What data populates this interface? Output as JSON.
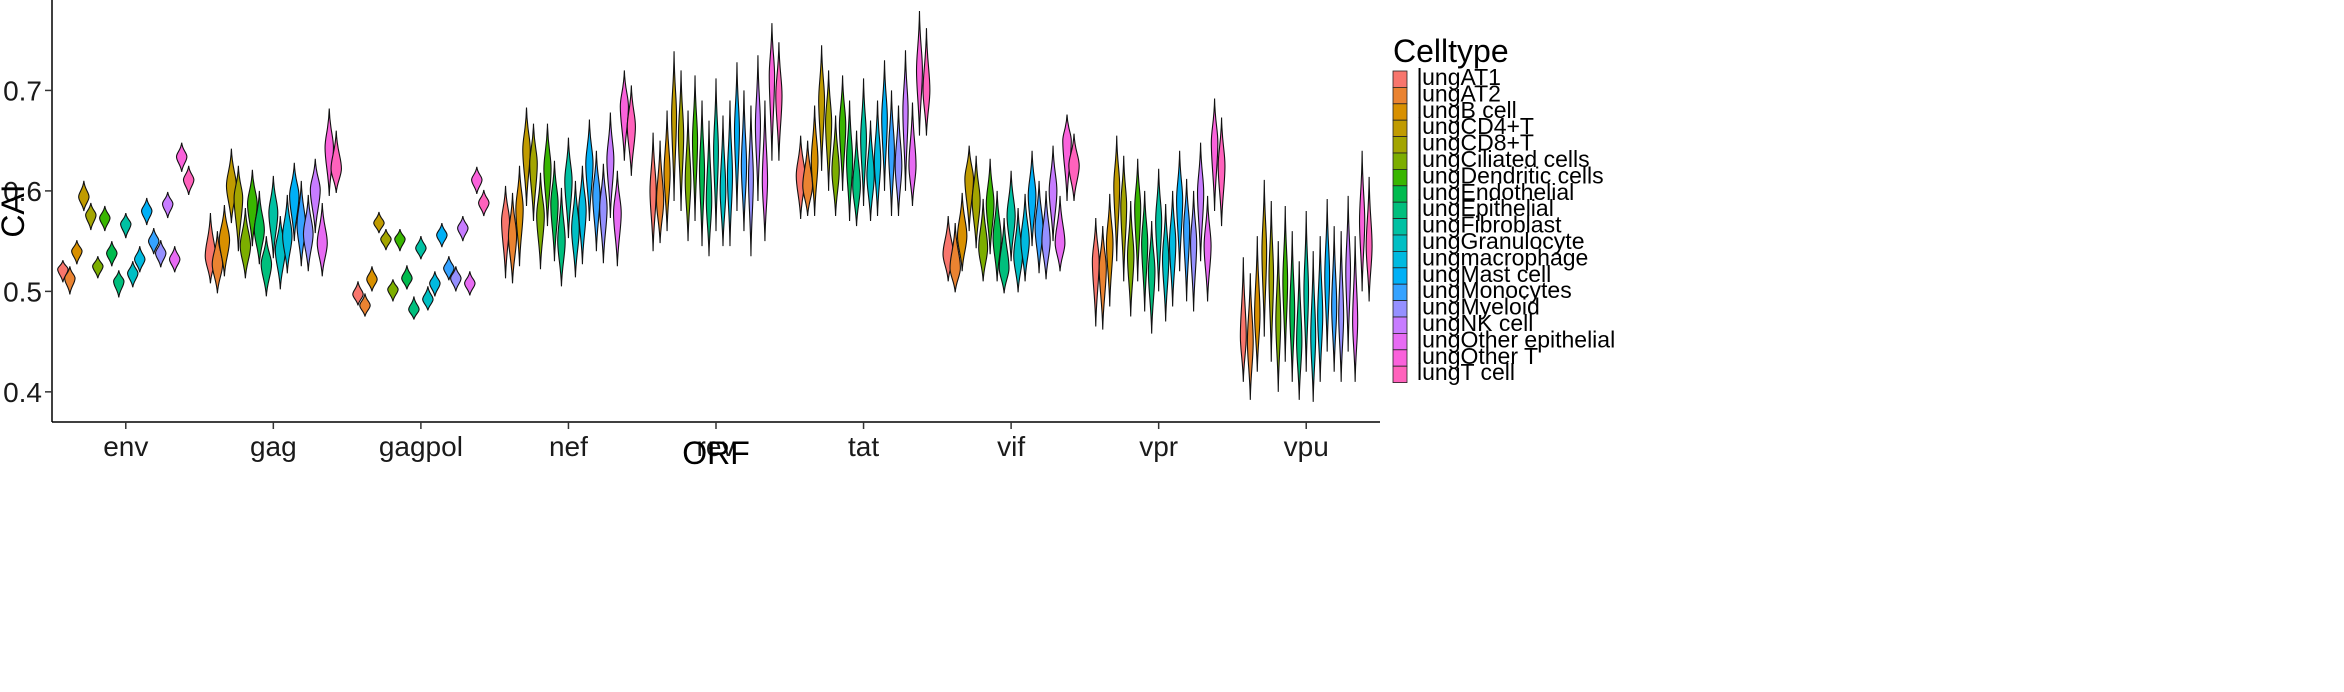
{
  "chart_data": {
    "type": "violin",
    "title": "",
    "xlabel": "ORF",
    "ylabel": "CAI",
    "ylim": [
      0.37,
      0.79
    ],
    "yticks": [
      0.4,
      0.5,
      0.6,
      0.7
    ],
    "categories": [
      "env",
      "gag",
      "gagpol",
      "nef",
      "rev",
      "tat",
      "vif",
      "vpr",
      "vpu"
    ],
    "legend_title": "Celltype",
    "legend_position": "right",
    "grid": false,
    "series": [
      {
        "name": "lungAT1",
        "color": "#F8766D"
      },
      {
        "name": "lungAT2",
        "color": "#EA8331"
      },
      {
        "name": "lungB cell",
        "color": "#D89000"
      },
      {
        "name": "lungCD4+T",
        "color": "#C09B00"
      },
      {
        "name": "lungCD8+T",
        "color": "#A3A500"
      },
      {
        "name": "lungCiliated cells",
        "color": "#7CAE00"
      },
      {
        "name": "lungDendritic cells",
        "color": "#39B600"
      },
      {
        "name": "lungEndothelial",
        "color": "#00BB4E"
      },
      {
        "name": "lungEpithelial",
        "color": "#00BF7D"
      },
      {
        "name": "lungFibroblast",
        "color": "#00C1A3"
      },
      {
        "name": "lungGranulocyte",
        "color": "#00BFC4"
      },
      {
        "name": "lungmacrophage",
        "color": "#00BAE0"
      },
      {
        "name": "lungMast cell",
        "color": "#00B0F6"
      },
      {
        "name": "lungMonocytes",
        "color": "#35A2FF"
      },
      {
        "name": "lungMyeloid",
        "color": "#9590FF"
      },
      {
        "name": "lungNK cell",
        "color": "#C77CFF"
      },
      {
        "name": "lungOther epithelial",
        "color": "#E76BF3"
      },
      {
        "name": "lungOther T",
        "color": "#FA62DB"
      },
      {
        "name": "lungT cell",
        "color": "#FF62BC"
      }
    ],
    "violins": {
      "env": [
        [
          0.522,
          0.509,
          0.531
        ],
        [
          0.513,
          0.497,
          0.525
        ],
        [
          0.54,
          0.527,
          0.551
        ],
        [
          0.594,
          0.58,
          0.61
        ],
        [
          0.576,
          0.561,
          0.588
        ],
        [
          0.525,
          0.513,
          0.535
        ],
        [
          0.573,
          0.56,
          0.585
        ],
        [
          0.538,
          0.525,
          0.55
        ],
        [
          0.51,
          0.494,
          0.521
        ],
        [
          0.567,
          0.553,
          0.578
        ],
        [
          0.518,
          0.504,
          0.53
        ],
        [
          0.532,
          0.519,
          0.545
        ],
        [
          0.58,
          0.566,
          0.593
        ],
        [
          0.55,
          0.537,
          0.563
        ],
        [
          0.538,
          0.524,
          0.551
        ],
        [
          0.587,
          0.573,
          0.599
        ],
        [
          0.532,
          0.519,
          0.545
        ],
        [
          0.634,
          0.619,
          0.648
        ],
        [
          0.611,
          0.596,
          0.625
        ]
      ],
      "gag": [
        [
          0.535,
          0.508,
          0.578
        ],
        [
          0.527,
          0.498,
          0.56
        ],
        [
          0.551,
          0.515,
          0.586
        ],
        [
          0.605,
          0.568,
          0.642
        ],
        [
          0.593,
          0.54,
          0.625
        ],
        [
          0.545,
          0.513,
          0.583
        ],
        [
          0.587,
          0.545,
          0.621
        ],
        [
          0.561,
          0.527,
          0.6
        ],
        [
          0.527,
          0.495,
          0.555
        ],
        [
          0.578,
          0.533,
          0.615
        ],
        [
          0.541,
          0.502,
          0.575
        ],
        [
          0.555,
          0.518,
          0.596
        ],
        [
          0.595,
          0.55,
          0.628
        ],
        [
          0.566,
          0.525,
          0.61
        ],
        [
          0.557,
          0.52,
          0.596
        ],
        [
          0.601,
          0.558,
          0.632
        ],
        [
          0.548,
          0.515,
          0.588
        ],
        [
          0.643,
          0.595,
          0.682
        ],
        [
          0.622,
          0.598,
          0.66
        ]
      ],
      "gagpol": [
        [
          0.497,
          0.486,
          0.51
        ],
        [
          0.486,
          0.475,
          0.498
        ],
        [
          0.512,
          0.5,
          0.525
        ],
        [
          0.568,
          0.558,
          0.579
        ],
        [
          0.552,
          0.541,
          0.562
        ],
        [
          0.502,
          0.49,
          0.512
        ],
        [
          0.552,
          0.54,
          0.562
        ],
        [
          0.513,
          0.502,
          0.526
        ],
        [
          0.482,
          0.472,
          0.495
        ],
        [
          0.543,
          0.532,
          0.555
        ],
        [
          0.492,
          0.481,
          0.505
        ],
        [
          0.508,
          0.495,
          0.52
        ],
        [
          0.556,
          0.544,
          0.568
        ],
        [
          0.523,
          0.511,
          0.535
        ],
        [
          0.513,
          0.5,
          0.525
        ],
        [
          0.563,
          0.55,
          0.575
        ],
        [
          0.508,
          0.496,
          0.52
        ],
        [
          0.611,
          0.597,
          0.624
        ],
        [
          0.588,
          0.575,
          0.601
        ]
      ],
      "nef": [
        [
          0.57,
          0.513,
          0.605
        ],
        [
          0.555,
          0.508,
          0.598
        ],
        [
          0.582,
          0.525,
          0.625
        ],
        [
          0.641,
          0.585,
          0.683
        ],
        [
          0.627,
          0.57,
          0.667
        ],
        [
          0.575,
          0.522,
          0.618
        ],
        [
          0.622,
          0.565,
          0.667
        ],
        [
          0.587,
          0.53,
          0.63
        ],
        [
          0.55,
          0.505,
          0.603
        ],
        [
          0.61,
          0.553,
          0.653
        ],
        [
          0.562,
          0.514,
          0.61
        ],
        [
          0.581,
          0.527,
          0.625
        ],
        [
          0.627,
          0.57,
          0.671
        ],
        [
          0.595,
          0.54,
          0.64
        ],
        [
          0.583,
          0.528,
          0.627
        ],
        [
          0.631,
          0.573,
          0.678
        ],
        [
          0.578,
          0.525,
          0.62
        ],
        [
          0.684,
          0.63,
          0.72
        ],
        [
          0.664,
          0.615,
          0.705
        ]
      ],
      "rev": [
        [
          0.6,
          0.54,
          0.658
        ],
        [
          0.59,
          0.548,
          0.65
        ],
        [
          0.618,
          0.56,
          0.68
        ],
        [
          0.675,
          0.59,
          0.739
        ],
        [
          0.655,
          0.58,
          0.72
        ],
        [
          0.61,
          0.55,
          0.68
        ],
        [
          0.65,
          0.57,
          0.715
        ],
        [
          0.62,
          0.545,
          0.69
        ],
        [
          0.59,
          0.535,
          0.67
        ],
        [
          0.64,
          0.56,
          0.712
        ],
        [
          0.6,
          0.545,
          0.675
        ],
        [
          0.615,
          0.545,
          0.69
        ],
        [
          0.66,
          0.58,
          0.728
        ],
        [
          0.625,
          0.56,
          0.7
        ],
        [
          0.612,
          0.535,
          0.685
        ],
        [
          0.665,
          0.59,
          0.735
        ],
        [
          0.61,
          0.55,
          0.69
        ],
        [
          0.715,
          0.63,
          0.767
        ],
        [
          0.695,
          0.63,
          0.748
        ]
      ],
      "tat": [
        [
          0.615,
          0.572,
          0.655
        ],
        [
          0.605,
          0.575,
          0.65
        ],
        [
          0.63,
          0.575,
          0.685
        ],
        [
          0.69,
          0.62,
          0.745
        ],
        [
          0.668,
          0.6,
          0.72
        ],
        [
          0.62,
          0.575,
          0.675
        ],
        [
          0.665,
          0.6,
          0.715
        ],
        [
          0.63,
          0.57,
          0.69
        ],
        [
          0.605,
          0.565,
          0.66
        ],
        [
          0.652,
          0.585,
          0.712
        ],
        [
          0.615,
          0.57,
          0.67
        ],
        [
          0.63,
          0.575,
          0.69
        ],
        [
          0.672,
          0.6,
          0.73
        ],
        [
          0.64,
          0.575,
          0.7
        ],
        [
          0.625,
          0.575,
          0.685
        ],
        [
          0.68,
          0.6,
          0.74
        ],
        [
          0.625,
          0.585,
          0.688
        ],
        [
          0.72,
          0.655,
          0.779
        ],
        [
          0.7,
          0.655,
          0.762
        ]
      ],
      "vif": [
        [
          0.537,
          0.51,
          0.575
        ],
        [
          0.523,
          0.499,
          0.568
        ],
        [
          0.555,
          0.52,
          0.598
        ],
        [
          0.612,
          0.56,
          0.645
        ],
        [
          0.59,
          0.543,
          0.635
        ],
        [
          0.543,
          0.51,
          0.592
        ],
        [
          0.587,
          0.537,
          0.632
        ],
        [
          0.553,
          0.51,
          0.6
        ],
        [
          0.523,
          0.498,
          0.573
        ],
        [
          0.575,
          0.53,
          0.62
        ],
        [
          0.535,
          0.499,
          0.583
        ],
        [
          0.55,
          0.51,
          0.597
        ],
        [
          0.595,
          0.545,
          0.64
        ],
        [
          0.563,
          0.518,
          0.61
        ],
        [
          0.55,
          0.512,
          0.6
        ],
        [
          0.6,
          0.55,
          0.645
        ],
        [
          0.548,
          0.52,
          0.595
        ],
        [
          0.65,
          0.59,
          0.676
        ],
        [
          0.625,
          0.59,
          0.657
        ]
      ],
      "vpr": [
        [
          0.53,
          0.465,
          0.573
        ],
        [
          0.523,
          0.462,
          0.565
        ],
        [
          0.548,
          0.485,
          0.597
        ],
        [
          0.605,
          0.53,
          0.655
        ],
        [
          0.585,
          0.51,
          0.635
        ],
        [
          0.535,
          0.475,
          0.59
        ],
        [
          0.583,
          0.51,
          0.632
        ],
        [
          0.548,
          0.48,
          0.6
        ],
        [
          0.52,
          0.458,
          0.57
        ],
        [
          0.57,
          0.5,
          0.622
        ],
        [
          0.532,
          0.47,
          0.587
        ],
        [
          0.548,
          0.485,
          0.6
        ],
        [
          0.591,
          0.52,
          0.64
        ],
        [
          0.562,
          0.49,
          0.612
        ],
        [
          0.548,
          0.48,
          0.6
        ],
        [
          0.598,
          0.53,
          0.648
        ],
        [
          0.545,
          0.49,
          0.595
        ],
        [
          0.648,
          0.58,
          0.692
        ],
        [
          0.625,
          0.565,
          0.673
        ]
      ],
      "vpu": [
        [
          0.455,
          0.41,
          0.534
        ],
        [
          0.45,
          0.392,
          0.518
        ],
        [
          0.477,
          0.42,
          0.555
        ],
        [
          0.54,
          0.455,
          0.611
        ],
        [
          0.515,
          0.43,
          0.59
        ],
        [
          0.47,
          0.4,
          0.55
        ],
        [
          0.51,
          0.43,
          0.585
        ],
        [
          0.48,
          0.41,
          0.56
        ],
        [
          0.45,
          0.392,
          0.53
        ],
        [
          0.5,
          0.42,
          0.58
        ],
        [
          0.455,
          0.39,
          0.54
        ],
        [
          0.476,
          0.41,
          0.555
        ],
        [
          0.515,
          0.44,
          0.592
        ],
        [
          0.485,
          0.42,
          0.565
        ],
        [
          0.475,
          0.41,
          0.56
        ],
        [
          0.52,
          0.44,
          0.595
        ],
        [
          0.47,
          0.41,
          0.555
        ],
        [
          0.57,
          0.5,
          0.64
        ],
        [
          0.545,
          0.49,
          0.614
        ]
      ]
    }
  }
}
